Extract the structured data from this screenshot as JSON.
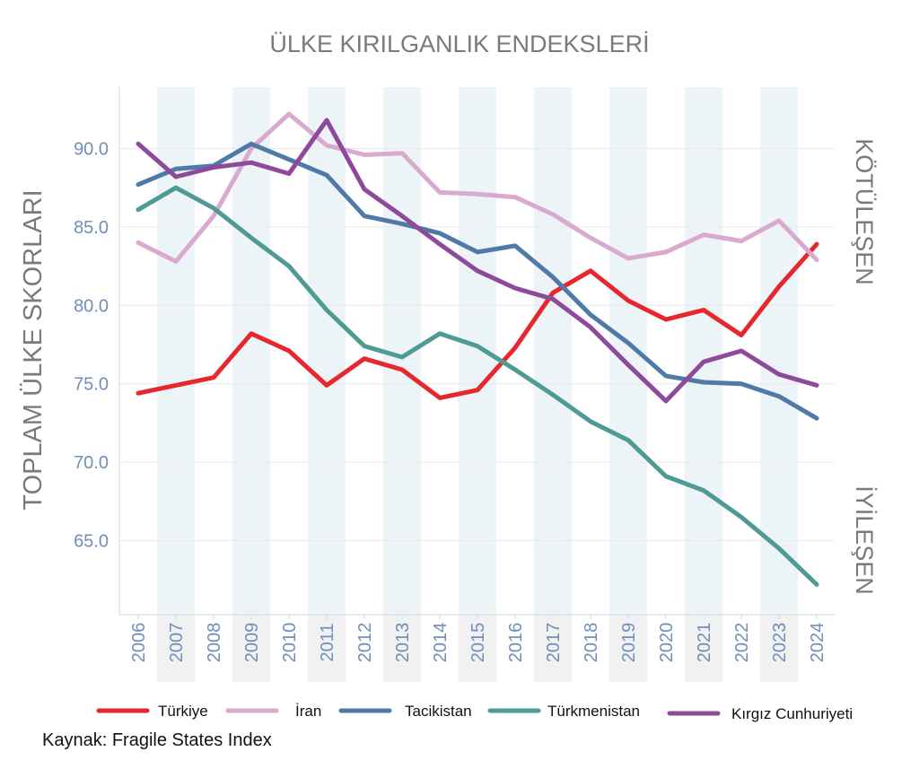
{
  "source_note": "Kaynak: Fragile States Index",
  "colors": {
    "title": "#7a7a7a",
    "side_labels": "#7a7a7a",
    "tick_labels": "#6f8fb8",
    "band": "#edf4f8",
    "grid": "#e9e9e9",
    "axis": "#d6d6d6"
  },
  "chart_data": {
    "type": "line",
    "title": "ÜLKE KIRILGANLIK ENDEKSLERİ",
    "ylabel": "TOPLAM ÜLKE SKORLARI",
    "side_label_top": "KÖTÜLEŞEN",
    "side_label_bottom": "İYİLEŞEN",
    "xlabel": "",
    "x": [
      "2006",
      "2007",
      "2008",
      "2009",
      "2010",
      "2011",
      "2012",
      "2013",
      "2014",
      "2015",
      "2016",
      "2017",
      "2018",
      "2019",
      "2020",
      "2021",
      "2022",
      "2023",
      "2024"
    ],
    "yticks": [
      65.0,
      70.0,
      75.0,
      80.0,
      85.0,
      90.0
    ],
    "ytick_labels": [
      "65.0",
      "70.0",
      "75.0",
      "80.0",
      "85.0",
      "90.0"
    ],
    "ylim": [
      60.8,
      93.2
    ],
    "grid": true,
    "alternating_year_bands": true,
    "legend_position": "bottom",
    "series": [
      {
        "name": "Türkiye",
        "color": "#e8262d",
        "values": [
          74.4,
          74.9,
          75.4,
          78.2,
          77.1,
          74.9,
          76.6,
          75.9,
          74.1,
          74.6,
          77.3,
          80.8,
          82.2,
          80.3,
          79.1,
          79.7,
          78.1,
          81.2,
          83.9
        ]
      },
      {
        "name": "İran",
        "color": "#d9a9cf",
        "values": [
          84.0,
          82.8,
          85.7,
          90.0,
          92.2,
          90.2,
          89.6,
          89.7,
          87.2,
          87.1,
          86.9,
          85.8,
          84.3,
          83.0,
          83.4,
          84.5,
          84.1,
          85.4,
          82.9
        ]
      },
      {
        "name": "Tacikistan",
        "color": "#4f7aa8",
        "values": [
          87.7,
          88.7,
          88.9,
          90.3,
          89.3,
          88.3,
          85.7,
          85.2,
          84.6,
          83.4,
          83.8,
          81.8,
          79.4,
          77.6,
          75.5,
          75.1,
          75.0,
          74.2,
          72.8
        ]
      },
      {
        "name": "Türkmenistan",
        "color": "#4e9a94",
        "values": [
          86.1,
          87.5,
          86.2,
          84.3,
          82.5,
          79.7,
          77.4,
          76.7,
          78.2,
          77.4,
          75.9,
          74.3,
          72.6,
          71.4,
          69.1,
          68.2,
          66.5,
          64.5,
          62.2
        ]
      },
      {
        "name": "Kırgız Cunhuriyeti",
        "color": "#8e4a9a",
        "values": [
          90.3,
          88.2,
          88.8,
          89.1,
          88.4,
          91.8,
          87.4,
          85.7,
          83.9,
          82.2,
          81.1,
          80.4,
          78.6,
          76.2,
          73.9,
          76.4,
          77.1,
          75.6,
          74.9
        ]
      }
    ]
  }
}
